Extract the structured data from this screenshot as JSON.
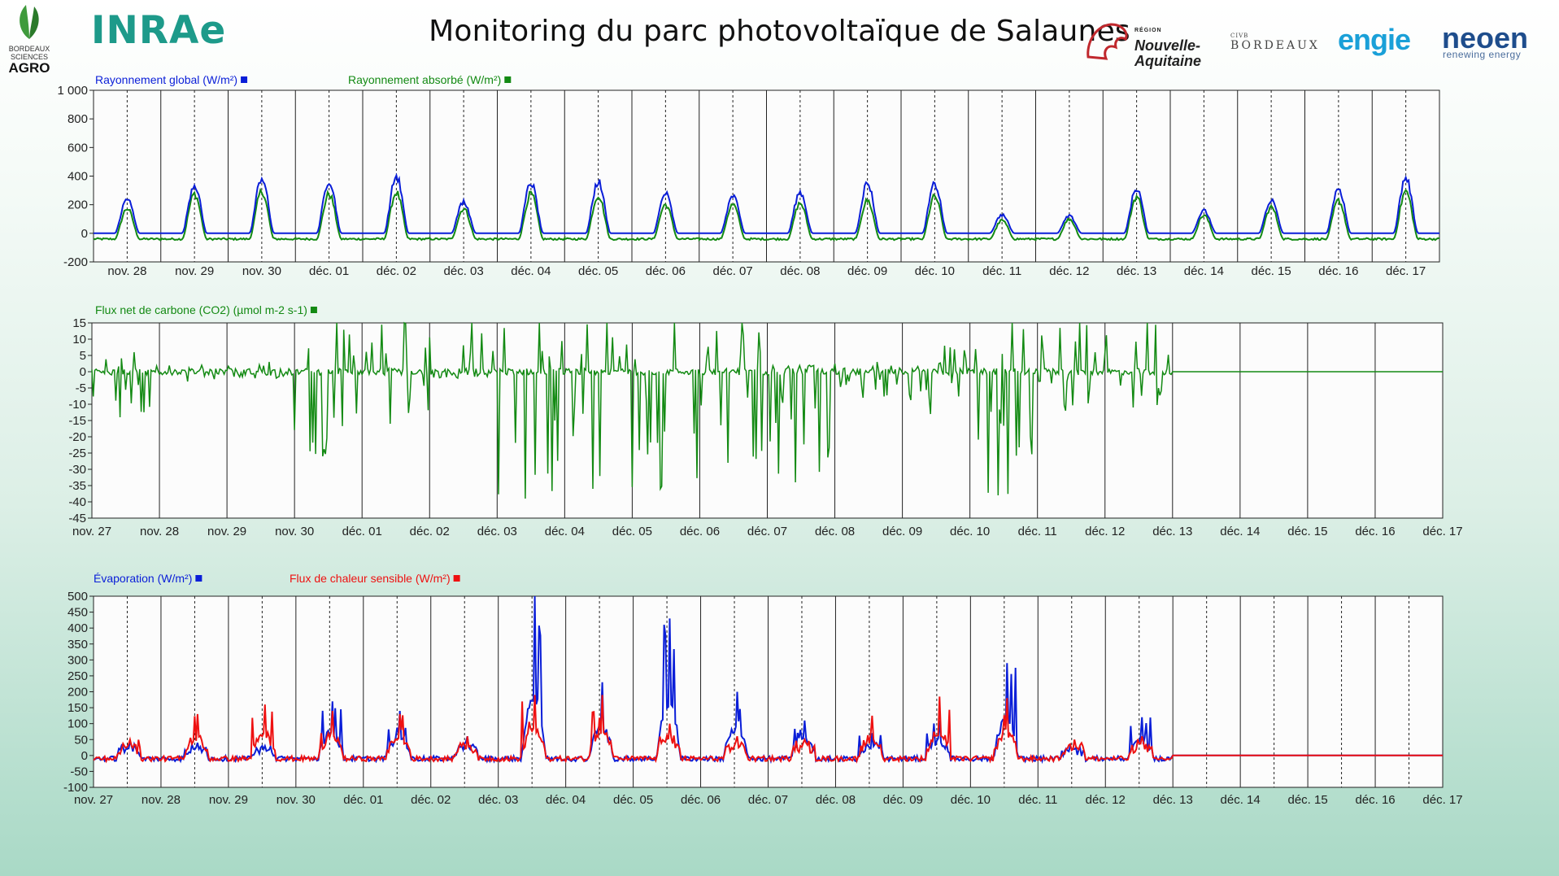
{
  "header": {
    "title": "Monitoring du parc photovoltaïque de Salaunes",
    "logos": {
      "inrae": "INRAe",
      "bsa_line1": "BORDEAUX",
      "bsa_line2": "SCIENCES",
      "bsa_line3": "AGRO",
      "region_small": "RÉGION",
      "region_name1": "Nouvelle-",
      "region_name2": "Aquitaine",
      "civb_small": "CIVB",
      "civb_name": "BORDEAUX",
      "engie": "engie",
      "neoen": "neoen",
      "neoen_tagline": "renewing energy"
    }
  },
  "colors": {
    "blue": "#0a1ed8",
    "green": "#138a13",
    "red": "#ee1111",
    "brand_teal": "#1d9a8a"
  },
  "chart_data": [
    {
      "type": "line",
      "x_start": "nov. 27",
      "x_end": "déc. 17",
      "x_tick_labels": [
        "nov. 28",
        "nov. 29",
        "nov. 30",
        "déc. 01",
        "déc. 02",
        "déc. 03",
        "déc. 04",
        "déc. 05",
        "déc. 06",
        "déc. 07",
        "déc. 08",
        "déc. 09",
        "déc. 10",
        "déc. 11",
        "déc. 12",
        "déc. 13",
        "déc. 14",
        "déc. 15",
        "déc. 16",
        "déc. 17"
      ],
      "ylim": [
        -200,
        1000
      ],
      "y_tick_labels": [
        "1 000",
        "800",
        "600",
        "400",
        "200",
        "0",
        "-200"
      ],
      "grid": "vertical lines at midnight (solid) and noon (dashed)",
      "daily_peaks_day_labels": [
        "nov. 27",
        "nov. 28",
        "nov. 29",
        "nov. 30",
        "déc. 01",
        "déc. 02",
        "déc. 03",
        "déc. 04",
        "déc. 05",
        "déc. 06",
        "déc. 07",
        "déc. 08",
        "déc. 09",
        "déc. 10",
        "déc. 11",
        "déc. 12",
        "déc. 13",
        "déc. 14",
        "déc. 15",
        "déc. 16"
      ],
      "series": [
        {
          "name": "Rayonnement global (W/m²)",
          "color": "#0a1ed8",
          "daily_peak": [
            260,
            370,
            420,
            400,
            430,
            240,
            380,
            390,
            300,
            280,
            310,
            380,
            370,
            140,
            130,
            340,
            170,
            250,
            340,
            420
          ],
          "night_value": 0
        },
        {
          "name": "Rayonnement absorbé (W/m²)",
          "color": "#138a13",
          "daily_peak": [
            190,
            300,
            320,
            300,
            310,
            190,
            300,
            290,
            220,
            220,
            230,
            250,
            280,
            100,
            110,
            280,
            140,
            200,
            250,
            320
          ],
          "night_value": -40
        }
      ]
    },
    {
      "type": "line",
      "x_tick_labels": [
        "nov. 27",
        "nov. 28",
        "nov. 29",
        "nov. 30",
        "déc. 01",
        "déc. 02",
        "déc. 03",
        "déc. 04",
        "déc. 05",
        "déc. 06",
        "déc. 07",
        "déc. 08",
        "déc. 09",
        "déc. 10",
        "déc. 11",
        "déc. 12",
        "déc. 13",
        "déc. 14",
        "déc. 15",
        "déc. 16",
        "déc. 17"
      ],
      "ylim": [
        -45,
        15
      ],
      "y_tick_labels": [
        "15",
        "10",
        "5",
        "0",
        "-5",
        "-10",
        "-15",
        "-20",
        "-25",
        "-30",
        "-35",
        "-40",
        "-45"
      ],
      "grid": "vertical lines at midnight (solid)",
      "data_ends_at": "déc. 13",
      "series": [
        {
          "name": "Flux net de carbone (CO2)  (µmol m-2 s-1)",
          "color": "#138a13",
          "daily_min": [
            -14,
            -3,
            -2,
            -26,
            -16,
            -2,
            -39,
            -36,
            -36,
            -28,
            -34,
            -8,
            -13,
            -38,
            -12,
            -11
          ],
          "daily_max": [
            6,
            2,
            3,
            15,
            15,
            15,
            15,
            15,
            15,
            15,
            2,
            3,
            8,
            15,
            15,
            15
          ]
        }
      ]
    },
    {
      "type": "line",
      "x_tick_labels": [
        "nov. 27",
        "nov. 28",
        "nov. 29",
        "nov. 30",
        "déc. 01",
        "déc. 02",
        "déc. 03",
        "déc. 04",
        "déc. 05",
        "déc. 06",
        "déc. 07",
        "déc. 08",
        "déc. 09",
        "déc. 10",
        "déc. 11",
        "déc. 12",
        "déc. 13",
        "déc. 14",
        "déc. 15",
        "déc. 16",
        "déc. 17"
      ],
      "ylim": [
        -100,
        500
      ],
      "y_tick_labels": [
        "500",
        "450",
        "400",
        "350",
        "300",
        "250",
        "200",
        "150",
        "100",
        "50",
        "0",
        "-50",
        "-100"
      ],
      "grid": "vertical lines at midnight (solid) and noon (dashed)",
      "data_ends_at": "déc. 13",
      "series": [
        {
          "name": "Évaporation (W/m²)",
          "color": "#0a1ed8",
          "daily_peak": [
            45,
            40,
            30,
            170,
            140,
            60,
            500,
            230,
            430,
            200,
            110,
            70,
            110,
            290,
            20,
            120
          ]
        },
        {
          "name": "Flux de chaleur sensible (W/m²)",
          "color": "#ee1111",
          "daily_peak": [
            50,
            130,
            160,
            140,
            130,
            60,
            190,
            190,
            100,
            60,
            50,
            125,
            185,
            180,
            50,
            60
          ]
        }
      ]
    }
  ]
}
